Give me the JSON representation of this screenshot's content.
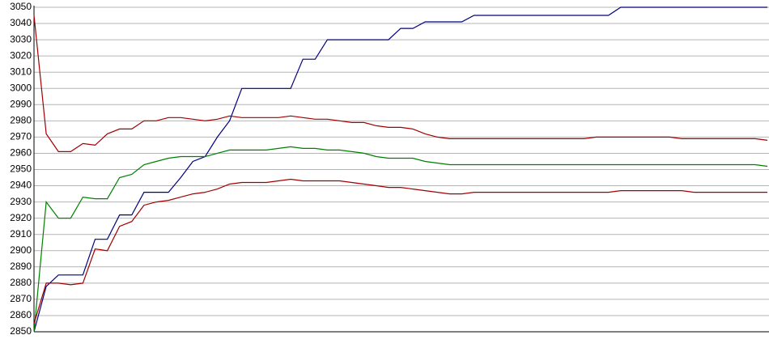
{
  "chart_data": {
    "type": "line",
    "categories": [
      null,
      null,
      null,
      null,
      null,
      null,
      null,
      null,
      null,
      null,
      null,
      null,
      null,
      null,
      null,
      null,
      null,
      null,
      null,
      null,
      null,
      null,
      null,
      null,
      null,
      null,
      null,
      null,
      null,
      null,
      null,
      null,
      null,
      null,
      null,
      null,
      null,
      null,
      null,
      null,
      null,
      null,
      null,
      null,
      null,
      null,
      null,
      null,
      null,
      null,
      null,
      null,
      null,
      null,
      null,
      null,
      null,
      null,
      null,
      null,
      null
    ],
    "series": [
      {
        "color": "#000080",
        "values": [
          2850,
          2878,
          2885,
          2885,
          2885,
          2907,
          2907,
          2922,
          2922,
          2936,
          2936,
          2936,
          2945,
          2955,
          2958,
          2970,
          2980,
          3000,
          3000,
          3000,
          3000,
          3000,
          3018,
          3018,
          3030,
          3030,
          3030,
          3030,
          3030,
          3030,
          3037,
          3037,
          3041,
          3041,
          3041,
          3041,
          3045,
          3045,
          3045,
          3045,
          3045,
          3045,
          3045,
          3045,
          3045,
          3045,
          3045,
          3045,
          3050,
          3050,
          3050,
          3050,
          3050,
          3050,
          3050,
          3050,
          3050,
          3050,
          3050,
          3050,
          3050
        ]
      },
      {
        "color": "#a00000",
        "values": [
          3045,
          2972,
          2961,
          2961,
          2966,
          2965,
          2972,
          2975,
          2975,
          2980,
          2980,
          2982,
          2982,
          2981,
          2980,
          2981,
          2983,
          2982,
          2982,
          2982,
          2982,
          2983,
          2982,
          2981,
          2981,
          2980,
          2979,
          2979,
          2977,
          2976,
          2976,
          2975,
          2972,
          2970,
          2969,
          2969,
          2969,
          2969,
          2969,
          2969,
          2969,
          2969,
          2969,
          2969,
          2969,
          2969,
          2970,
          2970,
          2970,
          2970,
          2970,
          2970,
          2970,
          2969,
          2969,
          2969,
          2969,
          2969,
          2969,
          2969,
          2968
        ]
      },
      {
        "color": "#008000",
        "values": [
          2850,
          2930,
          2920,
          2920,
          2933,
          2932,
          2932,
          2945,
          2947,
          2953,
          2955,
          2957,
          2958,
          2958,
          2958,
          2960,
          2962,
          2962,
          2962,
          2962,
          2963,
          2964,
          2963,
          2963,
          2962,
          2962,
          2961,
          2960,
          2958,
          2957,
          2957,
          2957,
          2955,
          2954,
          2953,
          2953,
          2953,
          2953,
          2953,
          2953,
          2953,
          2953,
          2953,
          2953,
          2953,
          2953,
          2953,
          2953,
          2953,
          2953,
          2953,
          2953,
          2953,
          2953,
          2953,
          2953,
          2953,
          2953,
          2953,
          2953,
          2952
        ]
      },
      {
        "color": "#a00000",
        "values": [
          2855,
          2880,
          2880,
          2879,
          2880,
          2901,
          2900,
          2915,
          2918,
          2928,
          2930,
          2931,
          2933,
          2935,
          2936,
          2938,
          2941,
          2942,
          2942,
          2942,
          2943,
          2944,
          2943,
          2943,
          2943,
          2943,
          2942,
          2941,
          2940,
          2939,
          2939,
          2938,
          2937,
          2936,
          2935,
          2935,
          2936,
          2936,
          2936,
          2936,
          2936,
          2936,
          2936,
          2936,
          2936,
          2936,
          2936,
          2936,
          2937,
          2937,
          2937,
          2937,
          2937,
          2937,
          2936,
          2936,
          2936,
          2936,
          2936,
          2936,
          2936
        ]
      }
    ],
    "ylim": [
      2850,
      3050
    ],
    "yticks": [
      2850,
      2860,
      2870,
      2880,
      2890,
      2900,
      2910,
      2920,
      2930,
      2940,
      2950,
      2960,
      2970,
      2980,
      2990,
      3000,
      3010,
      3020,
      3030,
      3040,
      3050
    ],
    "grid": true
  }
}
